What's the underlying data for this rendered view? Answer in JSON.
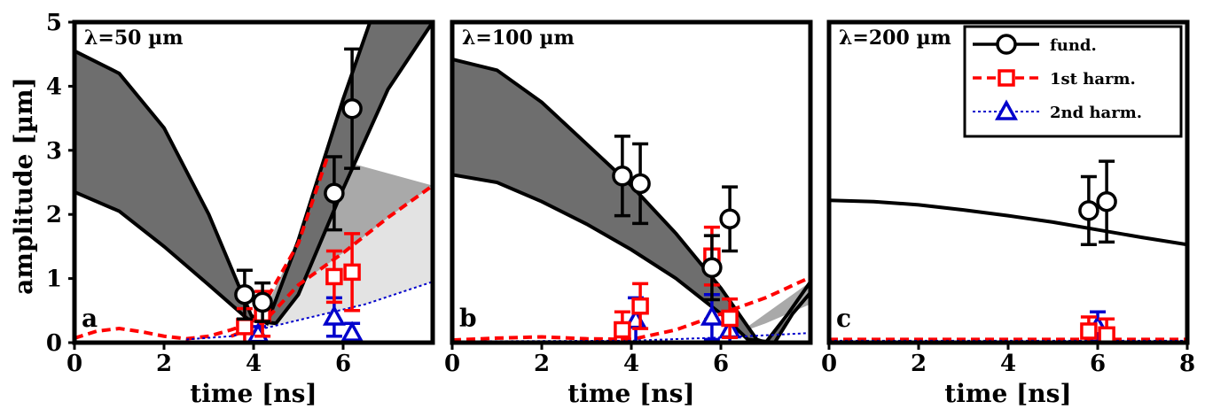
{
  "colors": {
    "fund": "#000000",
    "harm1": "#ff0000",
    "harm2": "#0000cc",
    "band_dark": "#6e6e6e",
    "band_mid": "#a9a9a9",
    "band_light": "#e3e3e3"
  },
  "chart_data": {
    "type": "scatter",
    "ylabel": "amplitude [µm]",
    "ylim": [
      0,
      5
    ],
    "yticks": [
      "0",
      "1",
      "2",
      "3",
      "4",
      "5"
    ],
    "legend": {
      "placement": "top-right of panel c",
      "entries": [
        {
          "label": "fund.",
          "marker": "circle",
          "line": "solid",
          "color": "#000000"
        },
        {
          "label": "1st harm.",
          "marker": "square",
          "line": "dashed",
          "color": "#ff0000"
        },
        {
          "label": "2nd harm.",
          "marker": "triangle",
          "line": "dotted",
          "color": "#0000cc"
        }
      ]
    },
    "panels": [
      {
        "letter": "a",
        "title": "λ=50 µm",
        "xlabel": "time [ns]",
        "xlim": [
          0,
          8
        ],
        "xticks": [
          "0",
          "2",
          "4",
          "6"
        ],
        "series": [
          {
            "marker": "circle",
            "color": "#000000",
            "points": [
              [
                3.8,
                0.75,
                0.38
              ],
              [
                4.2,
                0.63,
                0.3
              ],
              [
                5.8,
                2.33,
                0.57
              ],
              [
                6.2,
                3.65,
                0.93
              ]
            ]
          },
          {
            "marker": "square",
            "color": "#ff0000",
            "points": [
              [
                3.8,
                0.25,
                0.28
              ],
              [
                4.2,
                0.45,
                0.35
              ],
              [
                5.8,
                1.03,
                0.4
              ],
              [
                6.2,
                1.1,
                0.6
              ]
            ]
          },
          {
            "marker": "triangle",
            "color": "#0000cc",
            "points": [
              [
                4.1,
                0.13,
                0.12
              ],
              [
                5.8,
                0.4,
                0.3
              ],
              [
                6.2,
                0.15,
                0.15
              ]
            ]
          }
        ],
        "fits": [
          {
            "kind": "band",
            "shade": "dark",
            "upper": [
              [
                0,
                4.55
              ],
              [
                1,
                4.2
              ],
              [
                2,
                3.35
              ],
              [
                3,
                2.0
              ],
              [
                3.95,
                0.42
              ],
              [
                4.3,
                0.3
              ],
              [
                5,
                1.6
              ],
              [
                6,
                3.8
              ],
              [
                6.6,
                5.0
              ]
            ],
            "lower": [
              [
                0,
                2.35
              ],
              [
                1,
                2.05
              ],
              [
                2,
                1.5
              ],
              [
                3,
                0.9
              ],
              [
                3.9,
                0.35
              ],
              [
                4.5,
                0.3
              ],
              [
                5,
                0.75
              ],
              [
                6,
                2.4
              ],
              [
                7,
                3.95
              ],
              [
                8,
                5.0
              ]
            ]
          },
          {
            "kind": "band",
            "shade": "mid",
            "upper": [
              [
                4.1,
                0.3
              ],
              [
                5,
                1.6
              ],
              [
                5.65,
                2.9
              ]
            ],
            "lower": [
              [
                4.1,
                0.3
              ],
              [
                5,
                0.9
              ],
              [
                6,
                1.4
              ],
              [
                7,
                1.95
              ],
              [
                8,
                2.45
              ]
            ]
          },
          {
            "kind": "band",
            "shade": "light",
            "upper": [
              [
                3.5,
                0.1
              ],
              [
                4.2,
                0.3
              ],
              [
                5,
                0.9
              ],
              [
                6,
                1.4
              ],
              [
                7,
                1.95
              ],
              [
                8,
                2.45
              ]
            ],
            "lower": [
              [
                2.5,
                0.05
              ],
              [
                3.5,
                0.1
              ],
              [
                5,
                0.35
              ],
              [
                6.5,
                0.6
              ],
              [
                8,
                0.95
              ]
            ]
          },
          {
            "kind": "line",
            "color": "#ff0000",
            "style": "dashed",
            "points": [
              [
                0,
                0.07
              ],
              [
                0.5,
                0.18
              ],
              [
                1,
                0.22
              ],
              [
                1.5,
                0.17
              ],
              [
                2,
                0.1
              ],
              [
                2.5,
                0.06
              ],
              [
                3,
                0.1
              ],
              [
                3.5,
                0.2
              ],
              [
                4,
                0.32
              ],
              [
                5,
                1.55
              ],
              [
                5.65,
                2.9
              ]
            ]
          },
          {
            "kind": "line",
            "color": "#ff0000",
            "style": "dashed",
            "points": [
              [
                3.5,
                0.1
              ],
              [
                4.2,
                0.3
              ],
              [
                5,
                0.9
              ],
              [
                6,
                1.4
              ],
              [
                7,
                1.95
              ],
              [
                8,
                2.45
              ]
            ]
          },
          {
            "kind": "line",
            "color": "#0000cc",
            "style": "dotted",
            "points": [
              [
                2.5,
                0.05
              ],
              [
                3.5,
                0.1
              ],
              [
                5,
                0.35
              ],
              [
                6.5,
                0.6
              ],
              [
                8,
                0.95
              ]
            ]
          }
        ]
      },
      {
        "letter": "b",
        "title": "λ=100 µm",
        "xlabel": "time [ns]",
        "xlim": [
          0,
          8
        ],
        "xticks": [
          "0",
          "2",
          "4",
          "6"
        ],
        "series": [
          {
            "marker": "circle",
            "color": "#000000",
            "points": [
              [
                3.8,
                2.6,
                0.62
              ],
              [
                4.2,
                2.48,
                0.62
              ],
              [
                5.8,
                1.17,
                0.5
              ],
              [
                6.2,
                1.93,
                0.5
              ]
            ]
          },
          {
            "marker": "square",
            "color": "#ff0000",
            "points": [
              [
                3.8,
                0.2,
                0.28
              ],
              [
                4.2,
                0.57,
                0.35
              ],
              [
                5.8,
                1.35,
                0.45
              ],
              [
                6.2,
                0.38,
                0.3
              ]
            ]
          },
          {
            "marker": "triangle",
            "color": "#0000cc",
            "points": [
              [
                4.1,
                0.35,
                0.35
              ],
              [
                5.8,
                0.4,
                0.35
              ],
              [
                6.2,
                0.2,
                0.2
              ]
            ]
          }
        ],
        "fits": [
          {
            "kind": "band",
            "shade": "dark",
            "upper": [
              [
                0,
                4.42
              ],
              [
                1,
                4.25
              ],
              [
                2,
                3.75
              ],
              [
                3,
                3.1
              ],
              [
                4,
                2.45
              ],
              [
                5,
                1.7
              ],
              [
                6,
                0.85
              ],
              [
                6.8,
                0.05
              ],
              [
                7.0,
                0.0
              ]
            ],
            "lower": [
              [
                0,
                2.62
              ],
              [
                1,
                2.5
              ],
              [
                2,
                2.2
              ],
              [
                3,
                1.85
              ],
              [
                4,
                1.45
              ],
              [
                5,
                1.0
              ],
              [
                6,
                0.45
              ],
              [
                6.6,
                0.05
              ],
              [
                7.2,
                0.0
              ],
              [
                7.6,
                0.45
              ],
              [
                8,
                0.78
              ]
            ]
          },
          {
            "kind": "band",
            "shade": "mid",
            "upper": [
              [
                6.4,
                0.15
              ],
              [
                7,
                0.45
              ],
              [
                8,
                0.95
              ]
            ],
            "lower": [
              [
                6.4,
                0.15
              ],
              [
                7,
                0.3
              ],
              [
                8,
                0.6
              ]
            ]
          },
          {
            "kind": "line",
            "color": "#000000",
            "style": "solid",
            "points": [
              [
                7.0,
                0.0
              ],
              [
                7.5,
                0.45
              ],
              [
                8,
                0.95
              ]
            ]
          },
          {
            "kind": "line",
            "color": "#ff0000",
            "style": "dashed",
            "points": [
              [
                0,
                0.04
              ],
              [
                1,
                0.07
              ],
              [
                2,
                0.09
              ],
              [
                3,
                0.06
              ],
              [
                4,
                0.05
              ],
              [
                5,
                0.2
              ],
              [
                6,
                0.45
              ],
              [
                7,
                0.7
              ],
              [
                8,
                1.02
              ]
            ]
          },
          {
            "kind": "line",
            "color": "#0000cc",
            "style": "dotted",
            "points": [
              [
                0,
                0.02
              ],
              [
                4,
                0.03
              ],
              [
                6,
                0.08
              ],
              [
                8,
                0.15
              ]
            ]
          }
        ]
      },
      {
        "letter": "c",
        "title": "λ=200 µm",
        "xlabel": "time [ns]",
        "xlim": [
          0,
          8
        ],
        "xticks": [
          "0",
          "2",
          "4",
          "6",
          "8"
        ],
        "series": [
          {
            "marker": "circle",
            "color": "#000000",
            "points": [
              [
                5.8,
                2.06,
                0.53
              ],
              [
                6.2,
                2.2,
                0.63
              ]
            ]
          },
          {
            "marker": "square",
            "color": "#ff0000",
            "points": [
              [
                5.8,
                0.18,
                0.22
              ],
              [
                6.2,
                0.12,
                0.25
              ]
            ]
          },
          {
            "marker": "triangle",
            "color": "#0000cc",
            "points": [
              [
                6.0,
                0.25,
                0.23
              ]
            ]
          }
        ],
        "fits": [
          {
            "kind": "line",
            "color": "#000000",
            "style": "solid",
            "points": [
              [
                0,
                2.22
              ],
              [
                1,
                2.2
              ],
              [
                2,
                2.15
              ],
              [
                3,
                2.07
              ],
              [
                4,
                1.98
              ],
              [
                5,
                1.88
              ],
              [
                6,
                1.76
              ],
              [
                7,
                1.64
              ],
              [
                8,
                1.53
              ]
            ]
          },
          {
            "kind": "line",
            "color": "#ff0000",
            "style": "dashed",
            "points": [
              [
                0,
                0.05
              ],
              [
                8,
                0.05
              ]
            ]
          },
          {
            "kind": "line",
            "color": "#0000cc",
            "style": "dotted",
            "points": [
              [
                0,
                0.03
              ],
              [
                8,
                0.03
              ]
            ]
          }
        ]
      }
    ]
  }
}
